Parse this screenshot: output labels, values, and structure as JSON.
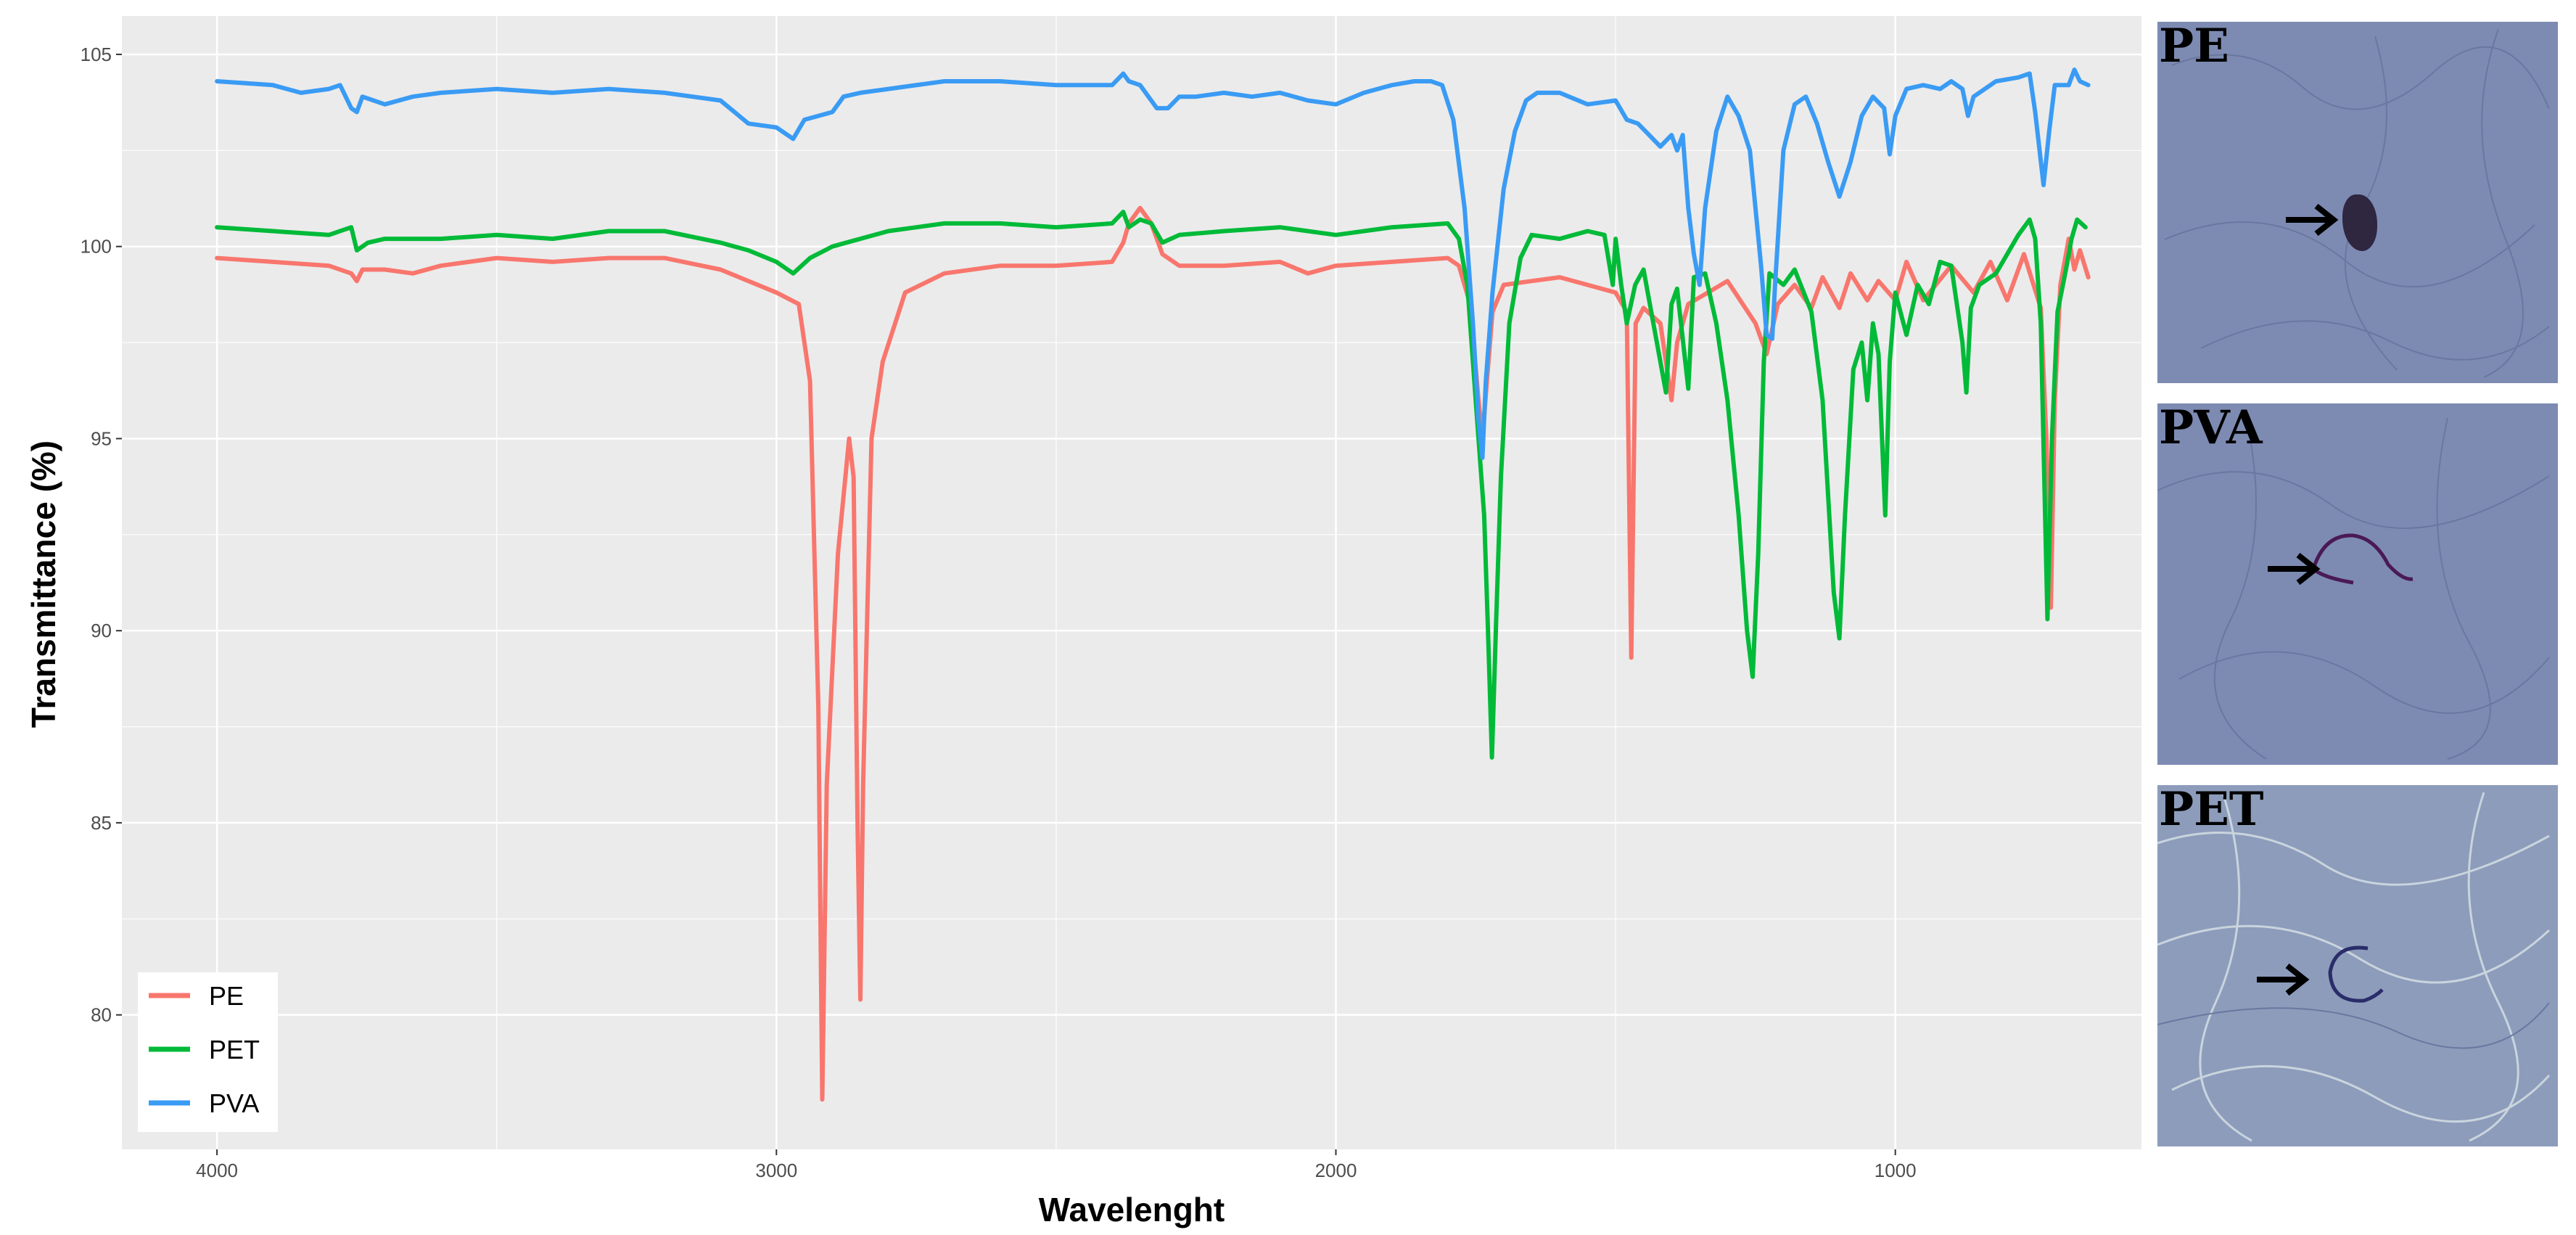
{
  "chart_data": {
    "type": "line",
    "xlabel": "Wavelenght",
    "ylabel": "Transmittance (%)",
    "xlim": [
      4170,
      560
    ],
    "ylim": [
      76.5,
      106
    ],
    "x_reversed": true,
    "x_ticks": [
      4000,
      3000,
      2000,
      1000
    ],
    "y_ticks": [
      80,
      85,
      90,
      95,
      100,
      105
    ],
    "grid": true,
    "legend_position": "bottom-left",
    "series": [
      {
        "name": "PE",
        "color": "#F8766D",
        "points": [
          [
            4000,
            99.7
          ],
          [
            3900,
            99.6
          ],
          [
            3800,
            99.5
          ],
          [
            3760,
            99.3
          ],
          [
            3750,
            99.1
          ],
          [
            3740,
            99.4
          ],
          [
            3700,
            99.4
          ],
          [
            3650,
            99.3
          ],
          [
            3600,
            99.5
          ],
          [
            3500,
            99.7
          ],
          [
            3400,
            99.6
          ],
          [
            3300,
            99.7
          ],
          [
            3200,
            99.7
          ],
          [
            3100,
            99.4
          ],
          [
            3000,
            98.8
          ],
          [
            2960,
            98.5
          ],
          [
            2940,
            96.5
          ],
          [
            2925,
            88
          ],
          [
            2918,
            77.8
          ],
          [
            2910,
            86
          ],
          [
            2890,
            92
          ],
          [
            2870,
            95
          ],
          [
            2862,
            94
          ],
          [
            2855,
            85
          ],
          [
            2850,
            80.4
          ],
          [
            2845,
            86
          ],
          [
            2830,
            95
          ],
          [
            2810,
            97
          ],
          [
            2770,
            98.8
          ],
          [
            2700,
            99.3
          ],
          [
            2600,
            99.5
          ],
          [
            2500,
            99.5
          ],
          [
            2400,
            99.6
          ],
          [
            2380,
            100.1
          ],
          [
            2370,
            100.6
          ],
          [
            2350,
            101
          ],
          [
            2330,
            100.6
          ],
          [
            2310,
            99.8
          ],
          [
            2280,
            99.5
          ],
          [
            2200,
            99.5
          ],
          [
            2100,
            99.6
          ],
          [
            2050,
            99.3
          ],
          [
            2000,
            99.5
          ],
          [
            1900,
            99.6
          ],
          [
            1800,
            99.7
          ],
          [
            1780,
            99.5
          ],
          [
            1760,
            98.5
          ],
          [
            1745,
            96
          ],
          [
            1738,
            95
          ],
          [
            1730,
            96.5
          ],
          [
            1720,
            98.3
          ],
          [
            1700,
            99
          ],
          [
            1650,
            99.1
          ],
          [
            1600,
            99.2
          ],
          [
            1550,
            99
          ],
          [
            1500,
            98.8
          ],
          [
            1480,
            98.3
          ],
          [
            1472,
            89.3
          ],
          [
            1464,
            98
          ],
          [
            1450,
            98.4
          ],
          [
            1420,
            98
          ],
          [
            1400,
            96
          ],
          [
            1390,
            97.5
          ],
          [
            1370,
            98.5
          ],
          [
            1300,
            99.1
          ],
          [
            1250,
            98
          ],
          [
            1230,
            97.2
          ],
          [
            1210,
            98.5
          ],
          [
            1180,
            99
          ],
          [
            1150,
            98.4
          ],
          [
            1130,
            99.2
          ],
          [
            1100,
            98.4
          ],
          [
            1080,
            99.3
          ],
          [
            1050,
            98.6
          ],
          [
            1030,
            99.1
          ],
          [
            1000,
            98.6
          ],
          [
            980,
            99.6
          ],
          [
            950,
            98.6
          ],
          [
            900,
            99.5
          ],
          [
            860,
            98.8
          ],
          [
            830,
            99.6
          ],
          [
            800,
            98.6
          ],
          [
            770,
            99.8
          ],
          [
            740,
            98.4
          ],
          [
            730,
            95
          ],
          [
            722,
            90.6
          ],
          [
            715,
            96
          ],
          [
            705,
            99
          ],
          [
            690,
            100.2
          ],
          [
            680,
            99.4
          ],
          [
            670,
            99.9
          ],
          [
            655,
            99.2
          ]
        ]
      },
      {
        "name": "PET",
        "color": "#00BA38",
        "points": [
          [
            4000,
            100.5
          ],
          [
            3900,
            100.4
          ],
          [
            3800,
            100.3
          ],
          [
            3760,
            100.5
          ],
          [
            3750,
            99.9
          ],
          [
            3730,
            100.1
          ],
          [
            3700,
            100.2
          ],
          [
            3600,
            100.2
          ],
          [
            3500,
            100.3
          ],
          [
            3400,
            100.2
          ],
          [
            3300,
            100.4
          ],
          [
            3200,
            100.4
          ],
          [
            3100,
            100.1
          ],
          [
            3050,
            99.9
          ],
          [
            3000,
            99.6
          ],
          [
            2970,
            99.3
          ],
          [
            2940,
            99.7
          ],
          [
            2900,
            100
          ],
          [
            2800,
            100.4
          ],
          [
            2700,
            100.6
          ],
          [
            2600,
            100.6
          ],
          [
            2500,
            100.5
          ],
          [
            2400,
            100.6
          ],
          [
            2380,
            100.9
          ],
          [
            2370,
            100.5
          ],
          [
            2350,
            100.7
          ],
          [
            2330,
            100.6
          ],
          [
            2310,
            100.1
          ],
          [
            2280,
            100.3
          ],
          [
            2200,
            100.4
          ],
          [
            2100,
            100.5
          ],
          [
            2000,
            100.3
          ],
          [
            1900,
            100.5
          ],
          [
            1800,
            100.6
          ],
          [
            1780,
            100.2
          ],
          [
            1765,
            99
          ],
          [
            1755,
            97
          ],
          [
            1745,
            95
          ],
          [
            1735,
            93
          ],
          [
            1728,
            90
          ],
          [
            1721,
            86.7
          ],
          [
            1714,
            90
          ],
          [
            1705,
            94
          ],
          [
            1690,
            98
          ],
          [
            1670,
            99.7
          ],
          [
            1650,
            100.3
          ],
          [
            1600,
            100.2
          ],
          [
            1550,
            100.4
          ],
          [
            1520,
            100.3
          ],
          [
            1505,
            99
          ],
          [
            1500,
            100.2
          ],
          [
            1490,
            99
          ],
          [
            1480,
            98
          ],
          [
            1465,
            99
          ],
          [
            1450,
            99.4
          ],
          [
            1420,
            97
          ],
          [
            1410,
            96.2
          ],
          [
            1400,
            98.5
          ],
          [
            1390,
            98.9
          ],
          [
            1370,
            96.3
          ],
          [
            1360,
            99.2
          ],
          [
            1340,
            99.3
          ],
          [
            1320,
            98
          ],
          [
            1300,
            96
          ],
          [
            1280,
            93
          ],
          [
            1265,
            90
          ],
          [
            1255,
            88.8
          ],
          [
            1245,
            92
          ],
          [
            1235,
            97
          ],
          [
            1225,
            99.3
          ],
          [
            1200,
            99
          ],
          [
            1180,
            99.4
          ],
          [
            1150,
            98.3
          ],
          [
            1130,
            96
          ],
          [
            1110,
            91
          ],
          [
            1100,
            89.8
          ],
          [
            1090,
            93
          ],
          [
            1075,
            96.8
          ],
          [
            1060,
            97.5
          ],
          [
            1050,
            96
          ],
          [
            1040,
            98
          ],
          [
            1030,
            97.2
          ],
          [
            1018,
            93
          ],
          [
            1010,
            97
          ],
          [
            1000,
            98.8
          ],
          [
            980,
            97.7
          ],
          [
            960,
            99
          ],
          [
            940,
            98.5
          ],
          [
            920,
            99.6
          ],
          [
            900,
            99.5
          ],
          [
            880,
            97.5
          ],
          [
            873,
            96.2
          ],
          [
            865,
            98.4
          ],
          [
            850,
            99
          ],
          [
            820,
            99.3
          ],
          [
            800,
            99.8
          ],
          [
            780,
            100.3
          ],
          [
            760,
            100.7
          ],
          [
            750,
            100.2
          ],
          [
            740,
            98
          ],
          [
            728,
            90.3
          ],
          [
            720,
            95
          ],
          [
            710,
            98.3
          ],
          [
            695,
            99.4
          ],
          [
            685,
            100.2
          ],
          [
            675,
            100.7
          ],
          [
            660,
            100.5
          ]
        ]
      },
      {
        "name": "PVA",
        "color": "#3A9BF4",
        "points": [
          [
            4000,
            104.3
          ],
          [
            3900,
            104.2
          ],
          [
            3850,
            104
          ],
          [
            3800,
            104.1
          ],
          [
            3780,
            104.2
          ],
          [
            3760,
            103.6
          ],
          [
            3750,
            103.5
          ],
          [
            3740,
            103.9
          ],
          [
            3700,
            103.7
          ],
          [
            3650,
            103.9
          ],
          [
            3600,
            104
          ],
          [
            3500,
            104.1
          ],
          [
            3400,
            104
          ],
          [
            3300,
            104.1
          ],
          [
            3200,
            104
          ],
          [
            3100,
            103.8
          ],
          [
            3050,
            103.2
          ],
          [
            3000,
            103.1
          ],
          [
            2970,
            102.8
          ],
          [
            2950,
            103.3
          ],
          [
            2900,
            103.5
          ],
          [
            2880,
            103.9
          ],
          [
            2850,
            104
          ],
          [
            2800,
            104.1
          ],
          [
            2700,
            104.3
          ],
          [
            2600,
            104.3
          ],
          [
            2500,
            104.2
          ],
          [
            2400,
            104.2
          ],
          [
            2380,
            104.5
          ],
          [
            2370,
            104.3
          ],
          [
            2350,
            104.2
          ],
          [
            2320,
            103.6
          ],
          [
            2300,
            103.6
          ],
          [
            2280,
            103.9
          ],
          [
            2250,
            103.9
          ],
          [
            2200,
            104
          ],
          [
            2150,
            103.9
          ],
          [
            2100,
            104
          ],
          [
            2050,
            103.8
          ],
          [
            2000,
            103.7
          ],
          [
            1950,
            104
          ],
          [
            1900,
            104.2
          ],
          [
            1860,
            104.3
          ],
          [
            1830,
            104.3
          ],
          [
            1810,
            104.2
          ],
          [
            1790,
            103.3
          ],
          [
            1770,
            101
          ],
          [
            1755,
            98
          ],
          [
            1745,
            95.5
          ],
          [
            1738,
            94.5
          ],
          [
            1732,
            96.5
          ],
          [
            1720,
            98.8
          ],
          [
            1700,
            101.5
          ],
          [
            1680,
            103
          ],
          [
            1660,
            103.8
          ],
          [
            1640,
            104
          ],
          [
            1600,
            104
          ],
          [
            1550,
            103.7
          ],
          [
            1500,
            103.8
          ],
          [
            1480,
            103.3
          ],
          [
            1460,
            103.2
          ],
          [
            1440,
            102.9
          ],
          [
            1420,
            102.6
          ],
          [
            1400,
            102.9
          ],
          [
            1390,
            102.5
          ],
          [
            1380,
            102.9
          ],
          [
            1370,
            101
          ],
          [
            1360,
            99.8
          ],
          [
            1350,
            99
          ],
          [
            1340,
            101
          ],
          [
            1320,
            103
          ],
          [
            1300,
            103.9
          ],
          [
            1280,
            103.4
          ],
          [
            1260,
            102.5
          ],
          [
            1250,
            101
          ],
          [
            1240,
            99.5
          ],
          [
            1230,
            97.7
          ],
          [
            1220,
            97.6
          ],
          [
            1215,
            99
          ],
          [
            1200,
            102.5
          ],
          [
            1180,
            103.7
          ],
          [
            1160,
            103.9
          ],
          [
            1140,
            103.2
          ],
          [
            1120,
            102.2
          ],
          [
            1100,
            101.3
          ],
          [
            1080,
            102.2
          ],
          [
            1060,
            103.4
          ],
          [
            1040,
            103.9
          ],
          [
            1020,
            103.6
          ],
          [
            1010,
            102.4
          ],
          [
            1000,
            103.4
          ],
          [
            980,
            104.1
          ],
          [
            950,
            104.2
          ],
          [
            920,
            104.1
          ],
          [
            900,
            104.3
          ],
          [
            880,
            104.1
          ],
          [
            870,
            103.4
          ],
          [
            860,
            103.9
          ],
          [
            820,
            104.3
          ],
          [
            780,
            104.4
          ],
          [
            760,
            104.5
          ],
          [
            750,
            103.5
          ],
          [
            735,
            101.6
          ],
          [
            725,
            103
          ],
          [
            715,
            104.2
          ],
          [
            700,
            104.2
          ],
          [
            690,
            104.2
          ],
          [
            680,
            104.6
          ],
          [
            670,
            104.3
          ],
          [
            655,
            104.2
          ]
        ]
      }
    ]
  },
  "panels": [
    {
      "label": "PE"
    },
    {
      "label": "PVA"
    },
    {
      "label": "PET"
    }
  ]
}
